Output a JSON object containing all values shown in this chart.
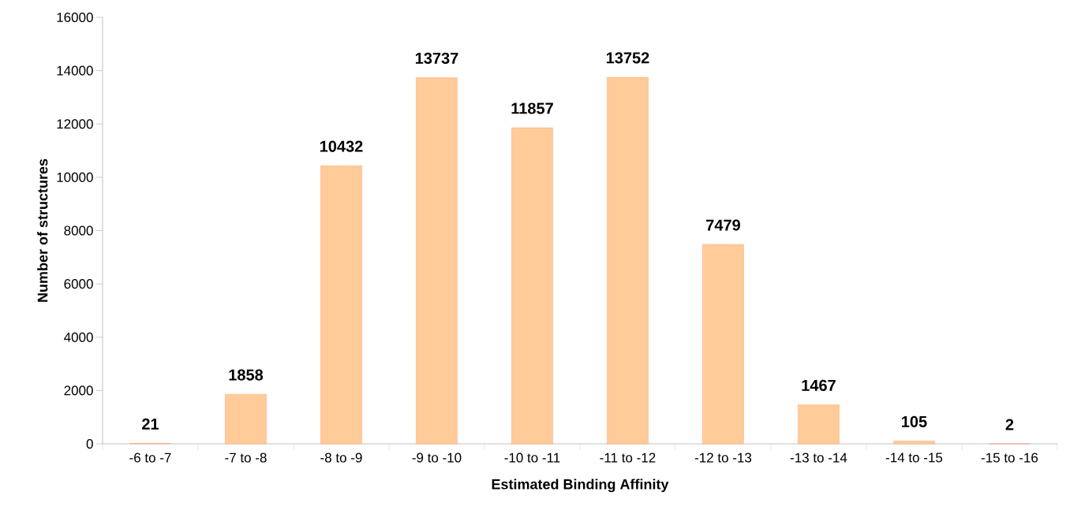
{
  "chart_data": {
    "type": "bar",
    "xlabel": "Estimated Binding Affinity",
    "ylabel": "Number of structures",
    "categories": [
      "-6 to -7",
      "-7 to -8",
      "-8 to -9",
      "-9 to -10",
      "-10 to -11",
      "-11 to -12",
      "-12 to -13",
      "-13 to -14",
      "-14 to -15",
      "-15 to -16"
    ],
    "values": [
      21,
      1858,
      10432,
      13737,
      11857,
      13752,
      7479,
      1467,
      105,
      2
    ],
    "color": "#ffcc99",
    "data_labels": true,
    "ylim": [
      0,
      16000
    ],
    "yticks": [
      0,
      2000,
      4000,
      6000,
      8000,
      10000,
      12000,
      14000,
      16000
    ]
  }
}
